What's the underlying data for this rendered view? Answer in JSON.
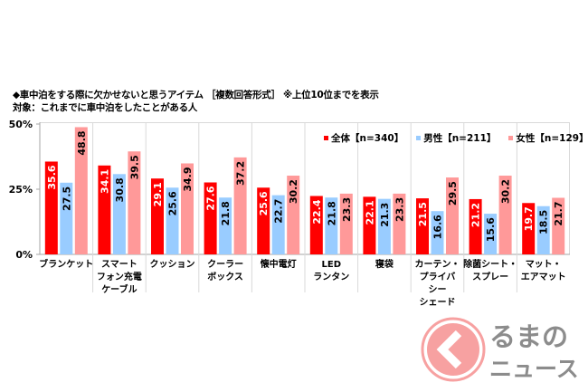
{
  "header": {
    "title": "◆車中泊をする際に欠かせないと思うアイテム ［複数回答形式］ ※上位10位までを表示",
    "subtitle": "対象：これまでに車中泊をしたことがある人"
  },
  "colors": {
    "all": "#ff0000",
    "male": "#99ccff",
    "female": "#ff9999",
    "axis": "#a6a6a6",
    "separator": "#d9d9d9",
    "logo_circle": "#f7a1a1",
    "logo_text": "#8c8c8c"
  },
  "logo": {
    "line1": "るまの",
    "line2": "ニュース"
  },
  "chart_data": {
    "type": "bar",
    "title": "車中泊をする際に欠かせないと思うアイテム",
    "xlabel": "",
    "ylabel": "",
    "ylim": [
      0,
      50
    ],
    "yticks": [
      "0%",
      "25%",
      "50%"
    ],
    "ytick_values": [
      0,
      25,
      50
    ],
    "grid": false,
    "legend_position": "top-right",
    "categories": [
      [
        "ブランケット"
      ],
      [
        "スマート",
        "フォン充電",
        "ケーブル"
      ],
      [
        "クッション"
      ],
      [
        "クーラー",
        "ボックス"
      ],
      [
        "懐中電灯"
      ],
      [
        "LED",
        "ランタン"
      ],
      [
        "寝袋"
      ],
      [
        "カーテン・",
        "プライバ",
        "シー",
        "シェード"
      ],
      [
        "除菌シート・",
        "スプレー"
      ],
      [
        "マット・",
        "エアマット"
      ]
    ],
    "series": [
      {
        "name": "全体【n=340】",
        "key": "all",
        "values": [
          35.6,
          34.1,
          29.1,
          27.6,
          25.6,
          22.4,
          22.1,
          21.5,
          21.2,
          19.7
        ]
      },
      {
        "name": "男性【n=211】",
        "key": "male",
        "values": [
          27.5,
          30.8,
          25.6,
          21.8,
          22.7,
          21.8,
          21.3,
          16.6,
          15.6,
          18.5
        ]
      },
      {
        "name": "女性【n=129】",
        "key": "female",
        "values": [
          48.8,
          39.5,
          34.9,
          37.2,
          30.2,
          23.3,
          23.3,
          29.5,
          30.2,
          21.7
        ]
      }
    ]
  }
}
